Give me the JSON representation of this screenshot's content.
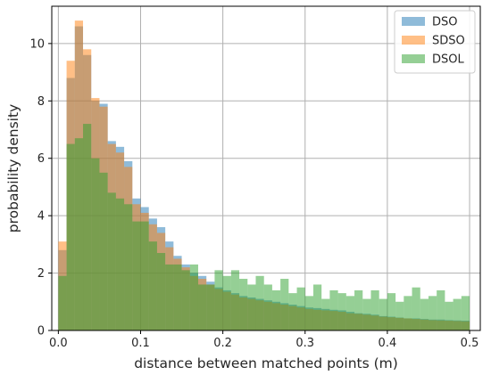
{
  "chart_data": {
    "type": "histogram",
    "title": "",
    "xlabel": "distance between matched points (m)",
    "ylabel": "probability density",
    "xlim": [
      -0.008,
      0.513
    ],
    "ylim": [
      0,
      11.3
    ],
    "x_ticks": [
      0.0,
      0.1,
      0.2,
      0.3,
      0.4,
      0.5
    ],
    "x_tick_labels": [
      "0.0",
      "0.1",
      "0.2",
      "0.3",
      "0.4",
      "0.5"
    ],
    "y_ticks": [
      0,
      2,
      4,
      6,
      8,
      10
    ],
    "y_tick_labels": [
      "0",
      "2",
      "4",
      "6",
      "8",
      "10"
    ],
    "grid": true,
    "legend_position": "top-right",
    "bin_start": 0.0,
    "bin_width": 0.01,
    "series": [
      {
        "name": "DSO",
        "color": "#1f77b4",
        "opacity": 0.5,
        "values": [
          2.8,
          8.8,
          10.6,
          9.6,
          8.0,
          7.9,
          6.6,
          6.4,
          5.9,
          4.6,
          4.3,
          3.9,
          3.6,
          3.1,
          2.6,
          2.3,
          2.0,
          1.9,
          1.7,
          1.5,
          1.4,
          1.3,
          1.2,
          1.15,
          1.1,
          1.05,
          1.0,
          0.95,
          0.9,
          0.85,
          0.8,
          0.78,
          0.75,
          0.72,
          0.7,
          0.65,
          0.6,
          0.58,
          0.55,
          0.5,
          0.48,
          0.45,
          0.42,
          0.42,
          0.4,
          0.38,
          0.38,
          0.36,
          0.35,
          0.34
        ]
      },
      {
        "name": "SDSO",
        "color": "#ff7f0e",
        "opacity": 0.5,
        "values": [
          3.1,
          9.4,
          10.8,
          9.8,
          8.1,
          7.8,
          6.5,
          6.2,
          5.7,
          4.4,
          4.1,
          3.7,
          3.4,
          2.9,
          2.5,
          2.2,
          1.9,
          1.8,
          1.6,
          1.45,
          1.35,
          1.25,
          1.15,
          1.1,
          1.05,
          1.0,
          0.95,
          0.9,
          0.85,
          0.8,
          0.75,
          0.72,
          0.7,
          0.68,
          0.65,
          0.6,
          0.58,
          0.55,
          0.52,
          0.48,
          0.46,
          0.44,
          0.42,
          0.4,
          0.38,
          0.36,
          0.35,
          0.34,
          0.33,
          0.32
        ]
      },
      {
        "name": "DSOL",
        "color": "#2ca02c",
        "opacity": 0.5,
        "values": [
          1.9,
          6.5,
          6.7,
          7.2,
          6.0,
          5.5,
          4.8,
          4.6,
          4.4,
          3.8,
          3.8,
          3.1,
          2.7,
          2.3,
          2.3,
          2.1,
          2.3,
          1.6,
          1.6,
          2.1,
          1.9,
          2.1,
          1.8,
          1.6,
          1.9,
          1.6,
          1.4,
          1.8,
          1.3,
          1.5,
          1.2,
          1.6,
          1.1,
          1.4,
          1.3,
          1.2,
          1.4,
          1.1,
          1.4,
          1.1,
          1.3,
          1.0,
          1.2,
          1.5,
          1.1,
          1.2,
          1.4,
          1.0,
          1.1,
          1.2
        ]
      }
    ]
  }
}
